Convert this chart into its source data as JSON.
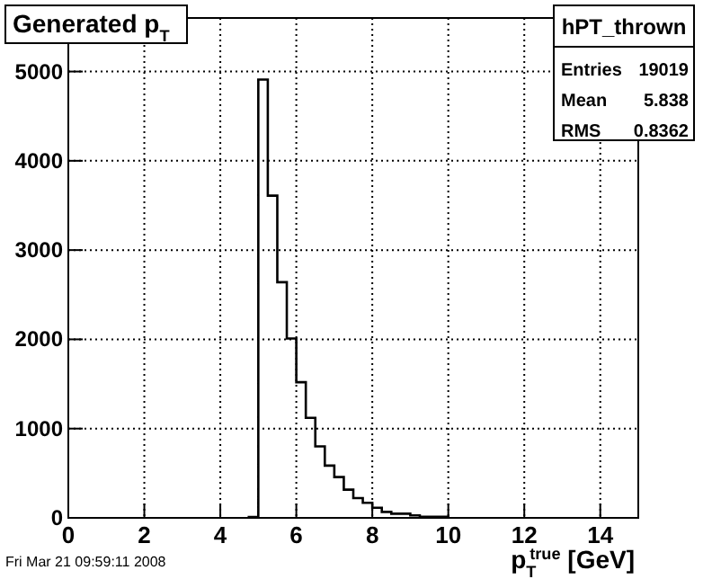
{
  "chart_data": {
    "type": "histogram",
    "title": "Generated p$_{T}$",
    "xlabel": "p$_{T}$$^{true}$ [GeV]",
    "bins": [
      4.75,
      5,
      5.25,
      5.5,
      5.75,
      6,
      6.25,
      6.5,
      6.75,
      7,
      7.25,
      7.5,
      7.75,
      8,
      8.25,
      8.5,
      8.75,
      9,
      9.25,
      9.5,
      9.75,
      10
    ],
    "values": [
      10,
      4910,
      3610,
      2640,
      2010,
      1520,
      1120,
      800,
      585,
      457,
      316,
      222,
      168,
      114,
      67,
      47,
      47,
      27,
      13,
      13,
      13
    ],
    "color": "#000000",
    "xlim": [
      0,
      15
    ],
    "ylim": [
      0,
      5600
    ],
    "xticks": [
      0,
      2,
      4,
      6,
      8,
      10,
      12,
      14
    ],
    "yticks": [
      0,
      1000,
      2000,
      3000,
      4000,
      5000
    ],
    "grid": true,
    "annotations": [
      "hPT_thrown",
      "Entries",
      "19019",
      "Mean",
      "5.838",
      "RMS",
      "0.8362",
      "Fri Mar 21 09:59:11 2008"
    ]
  }
}
